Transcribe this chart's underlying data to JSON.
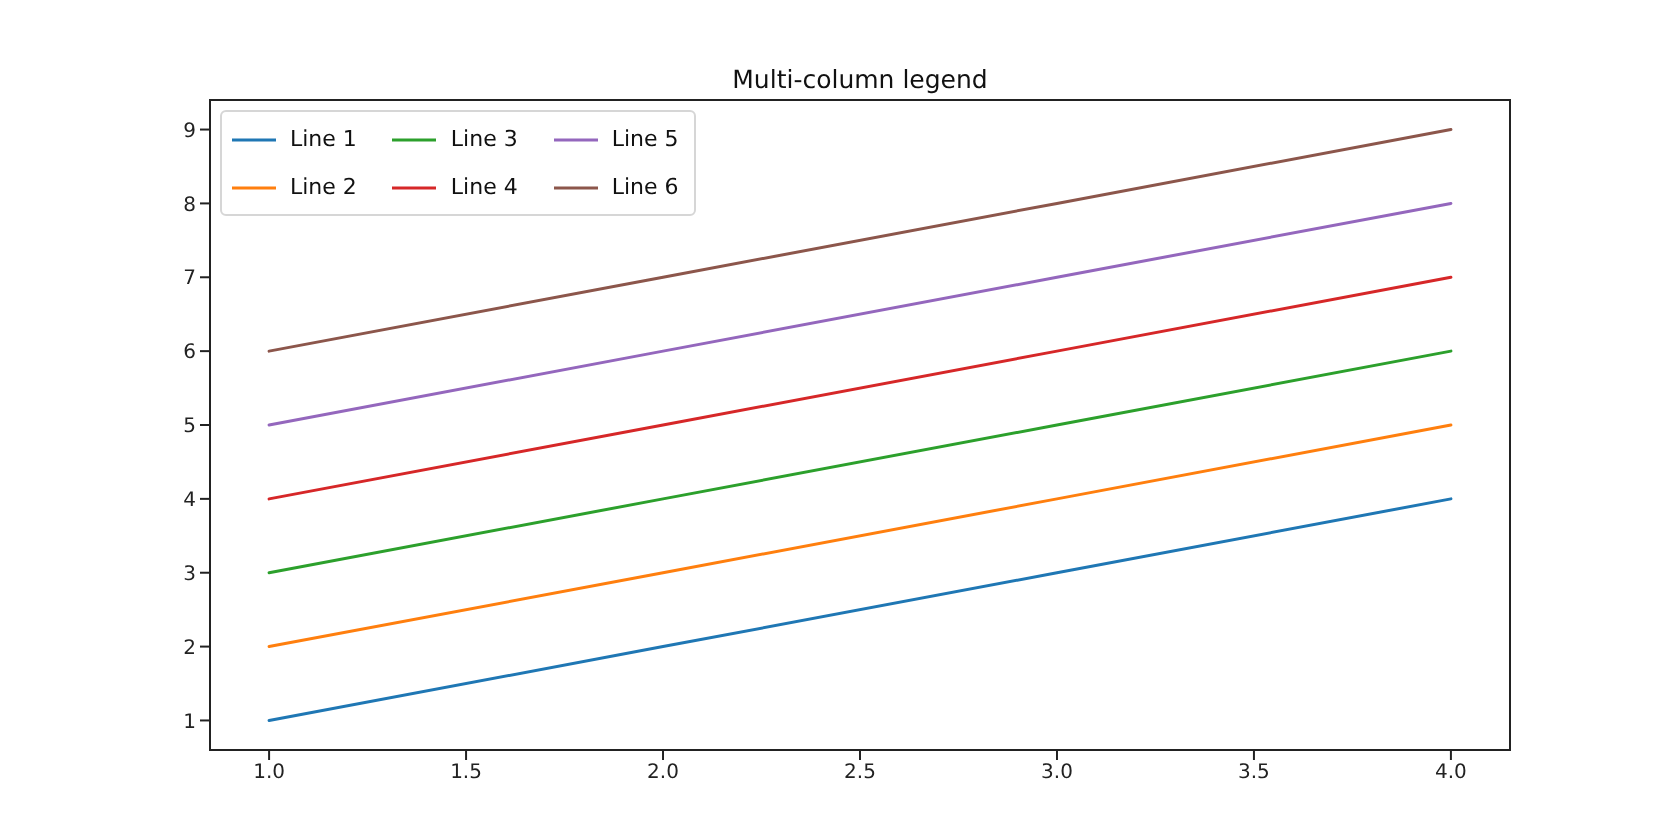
{
  "chart_data": {
    "type": "line",
    "title": "Multi-column legend",
    "x": [
      1,
      2,
      3,
      4
    ],
    "series": [
      {
        "name": "Line 1",
        "color": "#1f77b4",
        "values": [
          1,
          2,
          3,
          4
        ]
      },
      {
        "name": "Line 2",
        "color": "#ff7f0e",
        "values": [
          2,
          3,
          4,
          5
        ]
      },
      {
        "name": "Line 3",
        "color": "#2ca02c",
        "values": [
          3,
          4,
          5,
          6
        ]
      },
      {
        "name": "Line 4",
        "color": "#d62728",
        "values": [
          4,
          5,
          6,
          7
        ]
      },
      {
        "name": "Line 5",
        "color": "#9467bd",
        "values": [
          5,
          6,
          7,
          8
        ]
      },
      {
        "name": "Line 6",
        "color": "#8c564b",
        "values": [
          6,
          7,
          8,
          9
        ]
      }
    ],
    "xlim": [
      0.85,
      4.15
    ],
    "xticks": [
      {
        "value": 1,
        "label": "1.0"
      },
      1.5,
      {
        "value": 2,
        "label": "2.0"
      },
      2.5,
      {
        "value": 3,
        "label": "3.0"
      },
      3.5,
      {
        "value": 4,
        "label": "4.0"
      }
    ],
    "ylim": [
      0.6,
      9.4
    ],
    "yticks": [
      1,
      2,
      3,
      4,
      5,
      6,
      7,
      8,
      9
    ],
    "grid": false,
    "legend": "top left",
    "marker": "none",
    "line_style": "solid"
  }
}
